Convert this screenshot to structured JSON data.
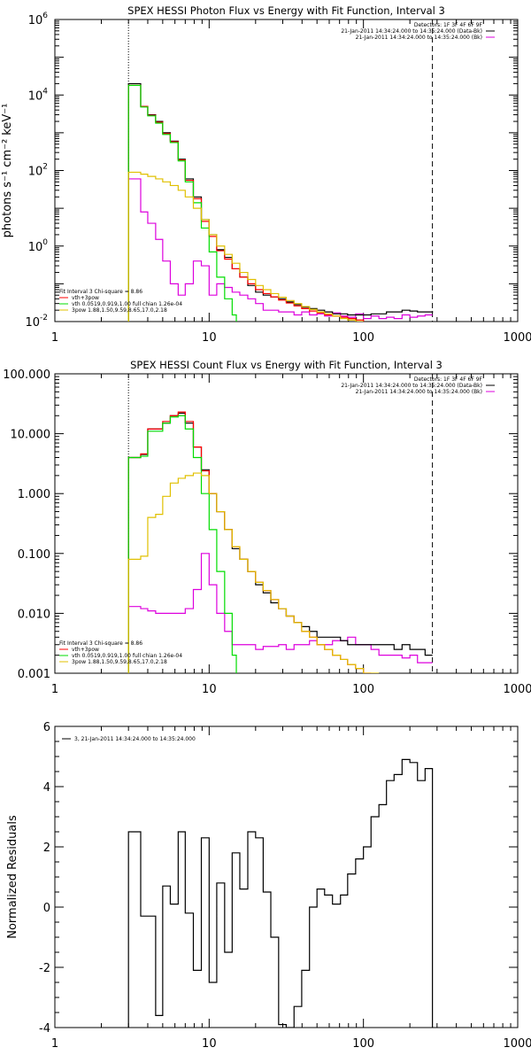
{
  "chart_data": [
    {
      "type": "line",
      "title": "SPEX HESSI Photon Flux vs Energy with Fit Function, Interval 3",
      "xlabel": "",
      "ylabel": "photons s⁻¹ cm⁻² keV⁻¹",
      "xscale": "log",
      "yscale": "log",
      "xlim": [
        1,
        1000
      ],
      "ylim": [
        0.01,
        1000000
      ],
      "xticks": [
        "1",
        "10",
        "100",
        "1000"
      ],
      "yticks": [
        {
          "value": 0.01,
          "base": "10",
          "exp": "-2"
        },
        {
          "value": 1,
          "base": "10",
          "exp": "0"
        },
        {
          "value": 100,
          "base": "10",
          "exp": "2"
        },
        {
          "value": 10000,
          "base": "10",
          "exp": "4"
        },
        {
          "value": 1000000,
          "base": "10",
          "exp": "6"
        }
      ],
      "vlines": [
        {
          "x": 3,
          "style": "dotted"
        },
        {
          "x": 280,
          "style": "dashed"
        }
      ],
      "legend_topright": [
        "Detectors: 1F 3F 4F 6F 9F",
        "21-Jan-2011 14:34:24.000 to 14:35:24.000 (Data-Bk)",
        "21-Jan-2011 14:34:24.000 to 14:35:24.000 (Bk)"
      ],
      "legend_bottomleft": [
        "Fit Interval 3   Chi-square = 8.86",
        "vth+3pow",
        "vth 0.0519,0.919,1.00  full chian 1.26e-04",
        "3pow 1.88,1.50,9.59,8.65,17.0,2.18"
      ],
      "series": [
        {
          "name": "Data-Bk",
          "color": "#000000",
          "x": [
            3,
            3.3,
            3.6,
            4,
            4.5,
            5,
            5.6,
            6.3,
            7,
            7.9,
            8.9,
            10,
            11.2,
            12.6,
            14.1,
            15.8,
            17.8,
            20,
            22.4,
            25.1,
            28.2,
            31.6,
            35.5,
            39.8,
            44.7,
            50,
            56,
            63,
            71,
            79,
            89,
            100,
            112,
            126,
            141,
            158,
            178,
            200,
            224,
            251,
            280
          ],
          "y": [
            20000,
            20000,
            5000,
            3000,
            2000,
            1000,
            600,
            200,
            60,
            20,
            5,
            2,
            0.8,
            0.5,
            0.25,
            0.15,
            0.09,
            0.06,
            0.05,
            0.045,
            0.04,
            0.033,
            0.028,
            0.024,
            0.022,
            0.02,
            0.018,
            0.016,
            0.016,
            0.015,
            0.015,
            0.015,
            0.016,
            0.016,
            0.018,
            0.018,
            0.02,
            0.019,
            0.018,
            0.018,
            0.019
          ]
        },
        {
          "name": "vth+3pow",
          "color": "#ff0000",
          "x": [
            3,
            3.3,
            3.6,
            4,
            4.5,
            5,
            5.6,
            6.3,
            7,
            7.9,
            8.9,
            10,
            11.2,
            12.6,
            14.1,
            15.8,
            17.8,
            20,
            22.4,
            25.1,
            28.2,
            31.6,
            35.5,
            39.8,
            44.7,
            50,
            56,
            63,
            71,
            79,
            89,
            100
          ],
          "y": [
            18000,
            18000,
            5000,
            2900,
            1900,
            950,
            580,
            190,
            55,
            18,
            4.5,
            1.8,
            0.75,
            0.45,
            0.25,
            0.15,
            0.1,
            0.07,
            0.055,
            0.045,
            0.037,
            0.031,
            0.026,
            0.022,
            0.019,
            0.017,
            0.015,
            0.014,
            0.013,
            0.012,
            0.011,
            0.01
          ]
        },
        {
          "name": "vth",
          "color": "#00dd00",
          "x": [
            3,
            3.3,
            3.6,
            4,
            4.5,
            5,
            5.6,
            6.3,
            7,
            7.9,
            8.9,
            10,
            11.2,
            12.6,
            14.1,
            15
          ],
          "y": [
            18000,
            18000,
            4800,
            2800,
            1800,
            900,
            550,
            180,
            50,
            14,
            3,
            0.7,
            0.15,
            0.04,
            0.015,
            0.01
          ]
        },
        {
          "name": "3pow",
          "color": "#e0c000",
          "x": [
            3,
            3.3,
            3.6,
            4,
            4.5,
            5,
            5.6,
            6.3,
            7,
            7.9,
            8.9,
            10,
            11.2,
            12.6,
            14.1,
            15.8,
            17.8,
            20,
            22.4,
            25.1,
            28.2,
            31.6,
            35.5,
            39.8,
            44.7,
            50,
            56,
            63,
            71,
            79,
            89,
            100
          ],
          "y": [
            90,
            90,
            80,
            70,
            60,
            50,
            40,
            30,
            20,
            10,
            5,
            2,
            1,
            0.6,
            0.35,
            0.2,
            0.13,
            0.09,
            0.07,
            0.055,
            0.044,
            0.036,
            0.03,
            0.025,
            0.021,
            0.018,
            0.016,
            0.014,
            0.012,
            0.011,
            0.01,
            0.01
          ]
        },
        {
          "name": "Bk",
          "color": "#dd00dd",
          "x": [
            3,
            3.3,
            3.6,
            4,
            4.5,
            5,
            5.6,
            6.3,
            7,
            7.9,
            8.9,
            10,
            11.2,
            12.6,
            14.1,
            15.8,
            17.8,
            20,
            22.4,
            25.1,
            28.2,
            31.6,
            35.5,
            39.8,
            44.7,
            50,
            56,
            63,
            71,
            79,
            89,
            100,
            112,
            126,
            141,
            158,
            178,
            200,
            224,
            251,
            280
          ],
          "y": [
            60,
            60,
            8,
            4,
            1.5,
            0.4,
            0.1,
            0.05,
            0.1,
            0.4,
            0.3,
            0.05,
            0.1,
            0.08,
            0.06,
            0.05,
            0.04,
            0.03,
            0.02,
            0.02,
            0.018,
            0.018,
            0.015,
            0.018,
            0.015,
            0.016,
            0.014,
            0.017,
            0.014,
            0.013,
            0.016,
            0.012,
            0.014,
            0.012,
            0.013,
            0.012,
            0.015,
            0.013,
            0.014,
            0.015,
            0.015
          ]
        }
      ]
    },
    {
      "type": "line",
      "title": "SPEX HESSI Count Flux vs Energy with Fit Function, Interval 3",
      "xlabel": "",
      "ylabel": "",
      "xscale": "log",
      "yscale": "log",
      "xlim": [
        1,
        1000
      ],
      "ylim": [
        0.001,
        100
      ],
      "xticks": [
        "1",
        "10",
        "100",
        "1000"
      ],
      "yticks": [
        "0.001",
        "0.010",
        "0.100",
        "1.000",
        "10.000",
        "100.000"
      ],
      "vlines": [
        {
          "x": 3,
          "style": "dotted"
        },
        {
          "x": 280,
          "style": "dashed"
        }
      ],
      "legend_topright": [
        "Detectors: 1F 3F 4F 6F 9F",
        "21-Jan-2011 14:34:24.000 to 14:35:24.000 (Data-Bk)",
        "21-Jan-2011 14:34:24.000 to 14:35:24.000 (Bk)"
      ],
      "legend_bottomleft": [
        "Fit Interval 3   Chi-square = 8.86",
        "vth+3pow",
        "vth 0.0519,0.919,1.00  full chian 1.26e-04",
        "3pow 1.88,1.50,9.59,8.65,17.0,2.18"
      ],
      "series": [
        {
          "name": "Data-Bk",
          "color": "#000000",
          "x": [
            3,
            3.3,
            3.6,
            4,
            4.5,
            5,
            5.6,
            6.3,
            7,
            7.9,
            8.9,
            10,
            11.2,
            12.6,
            14.1,
            15.8,
            17.8,
            20,
            22.4,
            25.1,
            28.2,
            31.6,
            35.5,
            39.8,
            44.7,
            50,
            56,
            63,
            71,
            79,
            89,
            100,
            112,
            126,
            141,
            158,
            178,
            200,
            224,
            251,
            280
          ],
          "y": [
            4,
            4,
            4.5,
            12,
            12,
            15,
            20,
            22,
            15,
            6,
            2.5,
            1,
            0.5,
            0.25,
            0.12,
            0.08,
            0.05,
            0.03,
            0.022,
            0.015,
            0.012,
            0.009,
            0.007,
            0.006,
            0.005,
            0.004,
            0.004,
            0.004,
            0.0035,
            0.003,
            0.003,
            0.003,
            0.003,
            0.003,
            0.003,
            0.0025,
            0.003,
            0.0025,
            0.0025,
            0.002,
            0.002
          ]
        },
        {
          "name": "vth+3pow",
          "color": "#ff0000",
          "x": [
            3,
            3.3,
            3.6,
            4,
            4.5,
            5,
            5.6,
            6.3,
            7,
            7.9,
            8.9,
            10,
            11.2,
            12.6,
            14.1,
            15.8,
            17.8,
            20,
            22.4,
            25.1,
            28.2,
            31.6,
            35.5,
            39.8,
            44.7,
            50,
            56,
            63,
            71,
            79,
            89,
            100,
            112
          ],
          "y": [
            4,
            4,
            4.6,
            12,
            12,
            16,
            20,
            23,
            16,
            6,
            2.4,
            1,
            0.5,
            0.25,
            0.13,
            0.08,
            0.05,
            0.033,
            0.024,
            0.017,
            0.012,
            0.009,
            0.007,
            0.005,
            0.004,
            0.003,
            0.0025,
            0.002,
            0.0017,
            0.0014,
            0.0012,
            0.001,
            0.001
          ]
        },
        {
          "name": "vth",
          "color": "#00dd00",
          "x": [
            3,
            3.3,
            3.6,
            4,
            4.5,
            5,
            5.6,
            6.3,
            7,
            7.9,
            8.9,
            10,
            11.2,
            12.6,
            14.1,
            15
          ],
          "y": [
            4,
            4,
            4.2,
            11,
            11,
            15,
            19,
            20,
            12,
            4,
            1,
            0.25,
            0.05,
            0.01,
            0.002,
            0.001
          ]
        },
        {
          "name": "3pow",
          "color": "#e0c000",
          "x": [
            3,
            3.3,
            3.6,
            4,
            4.5,
            5,
            5.6,
            6.3,
            7,
            7.9,
            8.9,
            10,
            11.2,
            12.6,
            14.1,
            15.8,
            17.8,
            20,
            22.4,
            25.1,
            28.2,
            31.6,
            35.5,
            39.8,
            44.7,
            50,
            56,
            63,
            71,
            79,
            89,
            100,
            112,
            126
          ],
          "y": [
            0.08,
            0.08,
            0.09,
            0.4,
            0.45,
            0.9,
            1.5,
            1.8,
            2,
            2.2,
            2,
            1,
            0.5,
            0.25,
            0.13,
            0.08,
            0.05,
            0.033,
            0.024,
            0.017,
            0.012,
            0.009,
            0.007,
            0.005,
            0.004,
            0.003,
            0.0025,
            0.002,
            0.0017,
            0.0014,
            0.0012,
            0.001,
            0.001,
            0.001
          ]
        },
        {
          "name": "Bk",
          "color": "#dd00dd",
          "x": [
            3,
            3.3,
            3.6,
            4,
            4.5,
            5,
            5.6,
            6.3,
            7,
            7.9,
            8.9,
            10,
            11.2,
            12.6,
            14.1,
            15.8,
            17.8,
            20,
            22.4,
            25.1,
            28.2,
            31.6,
            35.5,
            39.8,
            44.7,
            50,
            56,
            63,
            71,
            79,
            89,
            100,
            112,
            126,
            141,
            158,
            178,
            200,
            224,
            251,
            280
          ],
          "y": [
            0.013,
            0.013,
            0.012,
            0.011,
            0.01,
            0.01,
            0.01,
            0.01,
            0.012,
            0.025,
            0.1,
            0.03,
            0.01,
            0.005,
            0.003,
            0.003,
            0.003,
            0.0025,
            0.0028,
            0.0028,
            0.003,
            0.0025,
            0.003,
            0.003,
            0.0035,
            0.003,
            0.003,
            0.0035,
            0.0035,
            0.004,
            0.003,
            0.003,
            0.0025,
            0.002,
            0.002,
            0.002,
            0.0018,
            0.002,
            0.0015,
            0.0015,
            0.0015
          ]
        }
      ]
    },
    {
      "type": "line",
      "title": "",
      "xlabel": "",
      "ylabel": "Normalized Residuals",
      "xscale": "log",
      "yscale": "linear",
      "xlim": [
        1,
        1000
      ],
      "ylim": [
        -4,
        6
      ],
      "xticks": [
        "1",
        "10",
        "100",
        "1000"
      ],
      "yticks": [
        "-4",
        "-2",
        "0",
        "2",
        "4",
        "6"
      ],
      "legend": "3, 21-Jan-2011 14:34:24.000 to 14:35:24.000",
      "series": [
        {
          "name": "3, 21-Jan-2011 14:34:24.000 to 14:35:24.000",
          "color": "#000000",
          "edges": [
            3,
            3.3,
            3.6,
            4,
            4.5,
            5,
            5.6,
            6.3,
            7,
            7.9,
            8.9,
            10,
            11.2,
            12.6,
            14.1,
            15.8,
            17.8,
            20,
            22.4,
            25.1,
            28.2,
            31.6,
            35.5,
            39.8,
            44.7,
            50,
            56,
            63,
            71,
            79,
            89,
            100,
            112,
            126,
            141,
            158,
            178,
            200,
            224,
            251,
            280
          ],
          "values": [
            2.5,
            2.5,
            -0.3,
            -0.3,
            -3.6,
            0.7,
            0.1,
            2.5,
            -0.2,
            -2.1,
            2.3,
            -2.5,
            0.8,
            -1.5,
            1.8,
            0.6,
            2.5,
            2.3,
            0.5,
            -1.0,
            -3.9,
            -4.0,
            -3.3,
            -2.1,
            0.0,
            0.6,
            0.4,
            0.1,
            0.4,
            1.1,
            1.6,
            2.0,
            3.0,
            3.4,
            4.2,
            4.4,
            4.9,
            4.8,
            4.2,
            4.6
          ]
        }
      ]
    }
  ]
}
